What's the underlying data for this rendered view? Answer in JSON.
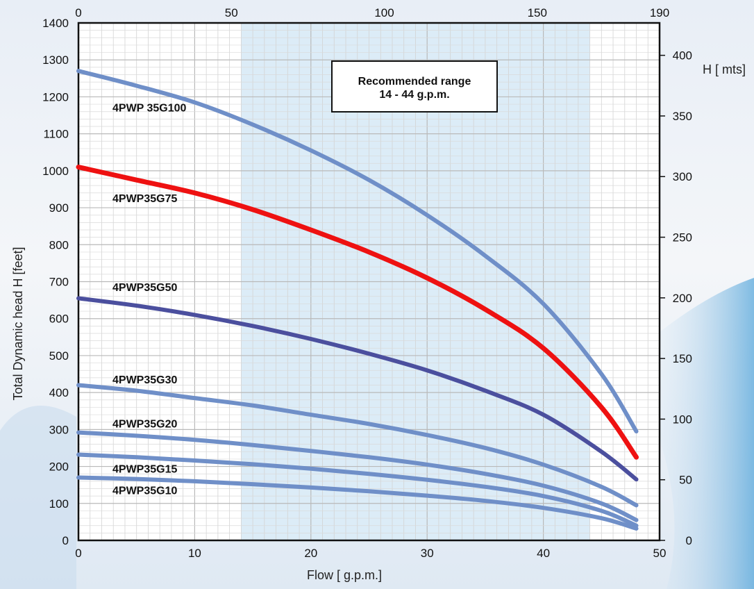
{
  "chart_data": {
    "type": "line",
    "xlabel": "Flow [ g.p.m.]",
    "ylabel": "Total Dynamic head H [feet]",
    "secondary_x_ticks": [
      "0",
      "50",
      "100",
      "150",
      "190"
    ],
    "secondary_y_title": "H [ mts]",
    "secondary_y_ticks": [
      "0",
      "50",
      "100",
      "150",
      "200",
      "250",
      "300",
      "350",
      "400"
    ],
    "xlim": [
      0,
      50
    ],
    "ylim": [
      0,
      1400
    ],
    "x_ticks": [
      "0",
      "10",
      "20",
      "30",
      "40",
      "50"
    ],
    "y_ticks": [
      "0",
      "100",
      "200",
      "300",
      "400",
      "500",
      "600",
      "700",
      "800",
      "900",
      "1000",
      "1100",
      "1200",
      "1300",
      "1400"
    ],
    "grid": true,
    "recommended_range": {
      "x_start": 14,
      "x_end": 44,
      "label_line1": "Recommended range",
      "label_line2": "14 - 44 g.p.m."
    },
    "series": [
      {
        "name": "4PWP 35G100",
        "color": "#6f8fc8",
        "x": [
          0,
          5,
          10,
          15,
          20,
          25,
          30,
          35,
          40,
          45,
          48
        ],
        "y": [
          1270,
          1230,
          1185,
          1125,
          1055,
          975,
          880,
          770,
          640,
          450,
          295
        ]
      },
      {
        "name": "4PWP35G75",
        "color": "#ee1111",
        "x": [
          0,
          5,
          10,
          15,
          20,
          25,
          30,
          35,
          40,
          45,
          48
        ],
        "y": [
          1010,
          975,
          940,
          895,
          840,
          780,
          710,
          625,
          520,
          360,
          225
        ]
      },
      {
        "name": "4PWP35G50",
        "color": "#4b4f9e",
        "x": [
          0,
          5,
          10,
          15,
          20,
          25,
          30,
          35,
          40,
          45,
          48
        ],
        "y": [
          655,
          635,
          610,
          580,
          545,
          505,
          460,
          405,
          340,
          240,
          165
        ]
      },
      {
        "name": "4PWP35G30",
        "color": "#6f8fc8",
        "x": [
          0,
          5,
          10,
          15,
          20,
          25,
          30,
          35,
          40,
          45,
          48
        ],
        "y": [
          420,
          405,
          385,
          365,
          340,
          315,
          285,
          250,
          205,
          145,
          95
        ]
      },
      {
        "name": "4PWP35G20",
        "color": "#6f8fc8",
        "x": [
          0,
          5,
          10,
          15,
          20,
          25,
          30,
          35,
          40,
          45,
          48
        ],
        "y": [
          292,
          283,
          272,
          258,
          242,
          225,
          205,
          180,
          148,
          100,
          55
        ]
      },
      {
        "name": "4PWP35G15",
        "color": "#6f8fc8",
        "x": [
          0,
          5,
          10,
          15,
          20,
          25,
          30,
          35,
          40,
          45,
          48
        ],
        "y": [
          232,
          225,
          216,
          206,
          194,
          180,
          164,
          145,
          120,
          80,
          40
        ]
      },
      {
        "name": "4PWP35G10",
        "color": "#6f8fc8",
        "x": [
          0,
          5,
          10,
          15,
          20,
          25,
          30,
          35,
          40,
          45,
          48
        ],
        "y": [
          170,
          166,
          160,
          152,
          143,
          133,
          121,
          107,
          88,
          60,
          32
        ]
      }
    ]
  }
}
